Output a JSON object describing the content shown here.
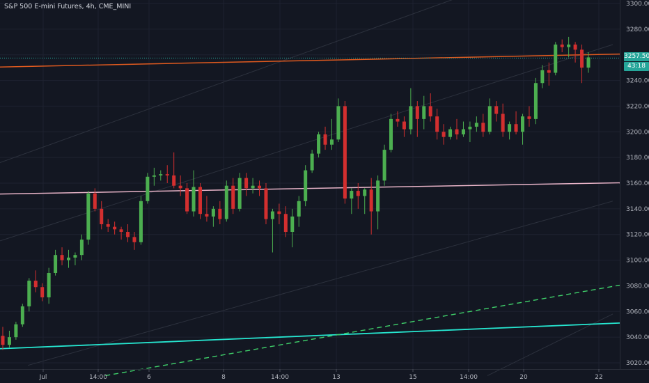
{
  "chart_data": {
    "type": "candlestick",
    "title": "S&P 500 E-mini Futures, 4h, CME_MINI",
    "y_range": [
      3010,
      3305
    ],
    "y_ticks": [
      3020,
      3040,
      3060,
      3080,
      3100,
      3120,
      3140,
      3160,
      3180,
      3200,
      3220,
      3240,
      3260,
      3280,
      3300
    ],
    "x_labels": [
      "Jul",
      "14:00",
      "6",
      "8",
      "14:00",
      "13",
      "15",
      "14:00",
      "20",
      "22"
    ],
    "last_price": "3257.50",
    "countdown": "43:18",
    "grid": true,
    "colors": {
      "up": "#26a69a",
      "up_fill": "#4caf50",
      "down": "#d32f2f",
      "background": "#131722",
      "resistance": "#e05a1f",
      "pink_line": "#e8b4c8",
      "support": "#26e6d0",
      "dashed": "#3fd06a"
    },
    "candles": [
      [
        3041,
        3048,
        3030,
        3034
      ],
      [
        3034,
        3045,
        3032,
        3040
      ],
      [
        3040,
        3052,
        3038,
        3050
      ],
      [
        3050,
        3066,
        3048,
        3064
      ],
      [
        3064,
        3086,
        3060,
        3084
      ],
      [
        3084,
        3092,
        3075,
        3079
      ],
      [
        3079,
        3082,
        3068,
        3071
      ],
      [
        3071,
        3094,
        3066,
        3090
      ],
      [
        3090,
        3108,
        3088,
        3104
      ],
      [
        3104,
        3110,
        3096,
        3100
      ],
      [
        3100,
        3108,
        3094,
        3102
      ],
      [
        3102,
        3106,
        3096,
        3104
      ],
      [
        3104,
        3120,
        3100,
        3116
      ],
      [
        3116,
        3154,
        3112,
        3152
      ],
      [
        3152,
        3156,
        3138,
        3140
      ],
      [
        3140,
        3146,
        3124,
        3128
      ],
      [
        3128,
        3132,
        3122,
        3126
      ],
      [
        3126,
        3130,
        3120,
        3124
      ],
      [
        3124,
        3126,
        3116,
        3122
      ],
      [
        3122,
        3128,
        3114,
        3118
      ],
      [
        3118,
        3122,
        3108,
        3114
      ],
      [
        3114,
        3150,
        3112,
        3146
      ],
      [
        3146,
        3168,
        3144,
        3165
      ],
      [
        3165,
        3172,
        3158,
        3166
      ],
      [
        3166,
        3170,
        3162,
        3167
      ],
      [
        3167,
        3174,
        3160,
        3166
      ],
      [
        3166,
        3184,
        3156,
        3158
      ],
      [
        3158,
        3166,
        3150,
        3156
      ],
      [
        3156,
        3160,
        3136,
        3138
      ],
      [
        3138,
        3170,
        3134,
        3157
      ],
      [
        3157,
        3160,
        3132,
        3136
      ],
      [
        3136,
        3150,
        3130,
        3134
      ],
      [
        3134,
        3142,
        3126,
        3140
      ],
      [
        3140,
        3146,
        3128,
        3132
      ],
      [
        3132,
        3162,
        3130,
        3158
      ],
      [
        3158,
        3164,
        3136,
        3140
      ],
      [
        3140,
        3168,
        3138,
        3164
      ],
      [
        3164,
        3168,
        3150,
        3156
      ],
      [
        3156,
        3164,
        3152,
        3158
      ],
      [
        3158,
        3162,
        3150,
        3156
      ],
      [
        3156,
        3160,
        3128,
        3132
      ],
      [
        3132,
        3140,
        3106,
        3138
      ],
      [
        3138,
        3144,
        3128,
        3136
      ],
      [
        3136,
        3142,
        3118,
        3122
      ],
      [
        3122,
        3140,
        3110,
        3134
      ],
      [
        3134,
        3150,
        3126,
        3146
      ],
      [
        3146,
        3174,
        3142,
        3170
      ],
      [
        3170,
        3186,
        3168,
        3183
      ],
      [
        3183,
        3200,
        3180,
        3198
      ],
      [
        3198,
        3204,
        3186,
        3190
      ],
      [
        3190,
        3210,
        3186,
        3194
      ],
      [
        3194,
        3226,
        3192,
        3220
      ],
      [
        3220,
        3224,
        3144,
        3148
      ],
      [
        3148,
        3156,
        3136,
        3154
      ],
      [
        3154,
        3160,
        3140,
        3150
      ],
      [
        3150,
        3156,
        3136,
        3155
      ],
      [
        3155,
        3164,
        3120,
        3138
      ],
      [
        3138,
        3166,
        3124,
        3162
      ],
      [
        3162,
        3190,
        3158,
        3186
      ],
      [
        3186,
        3214,
        3184,
        3210
      ],
      [
        3210,
        3216,
        3204,
        3208
      ],
      [
        3208,
        3212,
        3196,
        3202
      ],
      [
        3202,
        3234,
        3198,
        3220
      ],
      [
        3220,
        3224,
        3196,
        3210
      ],
      [
        3210,
        3228,
        3202,
        3220
      ],
      [
        3220,
        3230,
        3208,
        3212
      ],
      [
        3212,
        3218,
        3194,
        3200
      ],
      [
        3200,
        3206,
        3190,
        3196
      ],
      [
        3196,
        3204,
        3194,
        3202
      ],
      [
        3202,
        3210,
        3194,
        3198
      ],
      [
        3198,
        3208,
        3196,
        3202
      ],
      [
        3202,
        3208,
        3192,
        3204
      ],
      [
        3204,
        3212,
        3200,
        3207
      ],
      [
        3207,
        3214,
        3196,
        3200
      ],
      [
        3200,
        3226,
        3198,
        3220
      ],
      [
        3220,
        3224,
        3208,
        3214
      ],
      [
        3214,
        3222,
        3196,
        3200
      ],
      [
        3200,
        3208,
        3194,
        3206
      ],
      [
        3206,
        3216,
        3198,
        3200
      ],
      [
        3200,
        3214,
        3190,
        3212
      ],
      [
        3212,
        3220,
        3204,
        3210
      ],
      [
        3210,
        3242,
        3206,
        3238
      ],
      [
        3238,
        3252,
        3234,
        3248
      ],
      [
        3248,
        3254,
        3236,
        3246
      ],
      [
        3246,
        3270,
        3244,
        3268
      ],
      [
        3268,
        3272,
        3262,
        3266
      ],
      [
        3266,
        3274,
        3258,
        3268
      ],
      [
        3268,
        3270,
        3254,
        3264
      ],
      [
        3264,
        3268,
        3238,
        3250
      ],
      [
        3250,
        3262,
        3246,
        3258
      ]
    ],
    "trendlines": [
      {
        "style": "solid",
        "color": "#e05a1f",
        "from": [
          0,
          3250.5
        ],
        "to": [
          1,
          3260.6
        ]
      },
      {
        "style": "solid",
        "color": "#e8b4c8",
        "from": [
          0,
          3151.5
        ],
        "to": [
          1,
          3160.3
        ]
      },
      {
        "style": "solid",
        "color": "#26e6d0",
        "from": [
          0,
          3031
        ],
        "to": [
          1,
          3051
        ]
      },
      {
        "style": "dashed",
        "color": "#3fd06a",
        "from": [
          0.17,
          3010
        ],
        "to": [
          1,
          3080.5
        ]
      },
      {
        "style": "dotted",
        "color": "#26a69a",
        "from": [
          0,
          3257.5
        ],
        "to": [
          1,
          3257.5
        ]
      }
    ]
  }
}
